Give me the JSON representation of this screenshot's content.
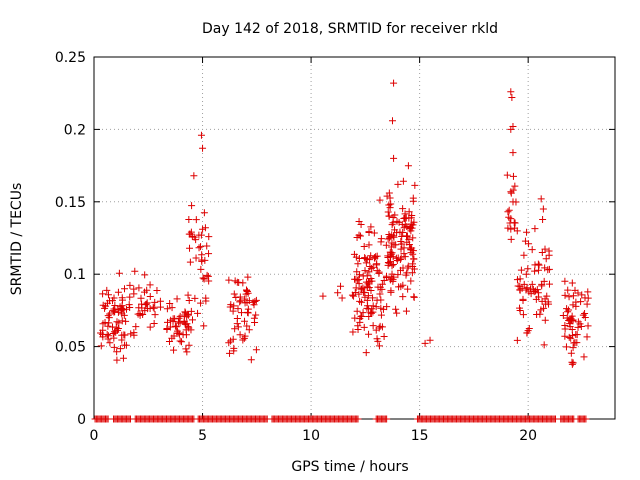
{
  "chart_data": {
    "type": "scatter",
    "title": "Day 142 of 2018, SRMTID for receiver rkld",
    "xlabel": "GPS time / hours",
    "ylabel": "SRMTID / TECUs",
    "xlim": [
      0,
      24
    ],
    "ylim": [
      0,
      0.25
    ],
    "grid": true,
    "marker": "+",
    "color": "#dd0000",
    "xticks": [
      0,
      5,
      10,
      15,
      20
    ],
    "xtick_labels": [
      "0",
      "5",
      "10",
      "15",
      "20"
    ],
    "yticks": [
      0,
      0.05,
      0.1,
      0.15,
      0.2,
      0.25
    ],
    "ytick_labels": [
      "0",
      "0.05",
      "0.1",
      "0.15",
      "0.2",
      "0.25"
    ],
    "series": [
      {
        "name": "SRMTID",
        "clusters": [
          {
            "x": [
              0.3,
              1.5
            ],
            "y": [
              0.03,
              0.11
            ],
            "n": 70
          },
          {
            "x": [
              1.6,
              3.1
            ],
            "y": [
              0.05,
              0.11
            ],
            "n": 40
          },
          {
            "x": [
              3.3,
              4.5
            ],
            "y": [
              0.04,
              0.09
            ],
            "n": 50
          },
          {
            "x": [
              4.3,
              5.3
            ],
            "y": [
              0.04,
              0.17
            ],
            "n": 40
          },
          {
            "x": [
              6.2,
              7.6
            ],
            "y": [
              0.025,
              0.125
            ],
            "n": 55
          },
          {
            "x": [
              10.5,
              11.8
            ],
            "y": [
              0.065,
              0.1
            ],
            "n": 4
          },
          {
            "x": [
              11.9,
              13.5
            ],
            "y": [
              0.03,
              0.155
            ],
            "n": 120
          },
          {
            "x": [
              13.5,
              14.8
            ],
            "y": [
              0.06,
              0.18
            ],
            "n": 130
          },
          {
            "x": [
              15.2,
              15.8
            ],
            "y": [
              0.05,
              0.06
            ],
            "n": 2
          },
          {
            "x": [
              19.0,
              19.5
            ],
            "y": [
              0.1,
              0.2
            ],
            "n": 20
          },
          {
            "x": [
              19.5,
              21.0
            ],
            "y": [
              0.035,
              0.15
            ],
            "n": 70
          },
          {
            "x": [
              21.6,
              22.8
            ],
            "y": [
              0.025,
              0.115
            ],
            "n": 60
          }
        ],
        "outliers": [
          {
            "x": 4.95,
            "y": 0.196
          },
          {
            "x": 5.0,
            "y": 0.187
          },
          {
            "x": 13.8,
            "y": 0.232
          },
          {
            "x": 13.75,
            "y": 0.206
          },
          {
            "x": 19.2,
            "y": 0.226
          },
          {
            "x": 19.25,
            "y": 0.222
          },
          {
            "x": 19.3,
            "y": 0.202
          },
          {
            "x": 19.2,
            "y": 0.2
          },
          {
            "x": 19.3,
            "y": 0.184
          },
          {
            "x": 14.0,
            "y": 0.162
          },
          {
            "x": 20.6,
            "y": 0.152
          },
          {
            "x": 20.7,
            "y": 0.145
          },
          {
            "x": 4.6,
            "y": 0.168
          },
          {
            "x": 13.8,
            "y": 0.18
          }
        ],
        "zero_ranges": [
          [
            0.05,
            0.7
          ],
          [
            0.9,
            1.7
          ],
          [
            1.9,
            4.6
          ],
          [
            4.8,
            8.0
          ],
          [
            8.2,
            12.2
          ],
          [
            13.0,
            13.5
          ],
          [
            14.9,
            21.3
          ],
          [
            21.5,
            22.1
          ],
          [
            22.3,
            22.7
          ]
        ]
      }
    ]
  }
}
